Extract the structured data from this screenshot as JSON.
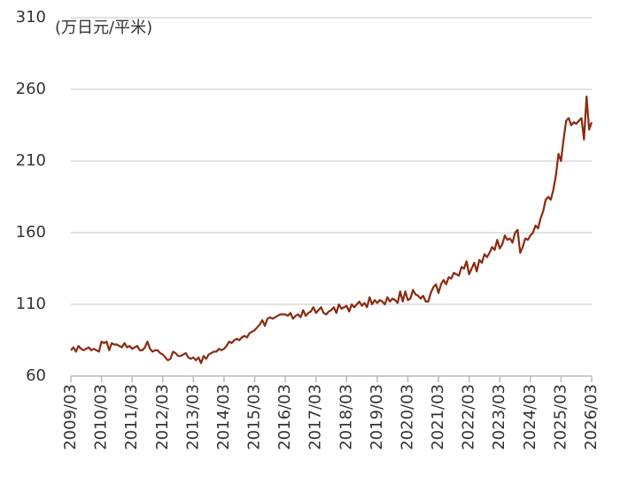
{
  "chart_data": {
    "type": "line",
    "y_label": "(万日元/平米)",
    "categories": [
      "2009/03",
      null,
      null,
      null,
      null,
      null,
      null,
      null,
      null,
      null,
      null,
      null,
      "2010/03",
      null,
      null,
      null,
      null,
      null,
      null,
      null,
      null,
      null,
      null,
      null,
      "2011/03",
      null,
      null,
      null,
      null,
      null,
      null,
      null,
      null,
      null,
      null,
      null,
      "2012/03",
      null,
      null,
      null,
      null,
      null,
      null,
      null,
      null,
      null,
      null,
      null,
      "2013/03",
      null,
      null,
      null,
      null,
      null,
      null,
      null,
      null,
      null,
      null,
      null,
      "2014/03",
      null,
      null,
      null,
      null,
      null,
      null,
      null,
      null,
      null,
      null,
      null,
      "2015/03",
      null,
      null,
      null,
      null,
      null,
      null,
      null,
      null,
      null,
      null,
      null,
      "2016/03",
      null,
      null,
      null,
      null,
      null,
      null,
      null,
      null,
      null,
      null,
      null,
      "2017/03",
      null,
      null,
      null,
      null,
      null,
      null,
      null,
      null,
      null,
      null,
      null,
      "2018/03",
      null,
      null,
      null,
      null,
      null,
      null,
      null,
      null,
      null,
      null,
      null,
      "2019/03",
      null,
      null,
      null,
      null,
      null,
      null,
      null,
      null,
      null,
      null,
      null,
      "2020/03",
      null,
      null,
      null,
      null,
      null,
      null,
      null,
      null,
      null,
      null,
      null,
      "2021/03",
      null,
      null,
      null,
      null,
      null,
      null,
      null,
      null,
      null,
      null,
      null,
      "2022/03",
      null,
      null,
      null,
      null,
      null,
      null,
      null,
      null,
      null,
      null,
      null,
      "2023/03",
      null,
      null,
      null,
      null,
      null,
      null,
      null,
      null,
      null,
      null,
      null,
      "2024/03",
      null,
      null,
      null,
      null,
      null,
      null,
      null,
      null,
      null,
      null,
      null,
      "2025/03",
      null,
      null,
      null,
      null,
      null,
      null,
      null,
      null,
      null,
      null,
      null,
      "2026/03"
    ],
    "values": [
      78,
      80,
      77,
      81,
      79,
      78,
      79,
      80,
      78,
      79,
      78,
      77,
      84,
      83,
      84,
      78,
      83,
      82,
      82,
      81,
      80,
      83,
      80,
      81,
      79,
      80,
      81,
      78,
      78,
      80,
      84,
      79,
      77,
      78,
      78,
      76,
      75,
      73,
      71,
      72,
      77,
      76,
      74,
      74,
      75,
      76,
      73,
      72,
      73,
      71,
      73,
      69,
      74,
      72,
      75,
      76,
      77,
      77,
      79,
      78,
      79,
      81,
      84,
      83,
      85,
      86,
      85,
      87,
      88,
      87,
      90,
      91,
      92,
      94,
      96,
      99,
      95,
      100,
      101,
      100,
      101,
      102,
      103,
      103,
      103,
      102,
      104,
      100,
      102,
      103,
      101,
      106,
      102,
      104,
      105,
      108,
      104,
      106,
      108,
      104,
      103,
      105,
      106,
      108,
      104,
      110,
      107,
      108,
      109,
      105,
      110,
      108,
      110,
      112,
      109,
      111,
      108,
      115,
      110,
      113,
      111,
      113,
      112,
      110,
      115,
      112,
      114,
      113,
      111,
      119,
      112,
      119,
      113,
      114,
      120,
      117,
      116,
      114,
      116,
      112,
      112,
      118,
      122,
      124,
      118,
      124,
      127,
      124,
      129,
      128,
      132,
      131,
      130,
      136,
      135,
      140,
      131,
      135,
      139,
      133,
      141,
      139,
      145,
      143,
      146,
      150,
      148,
      155,
      149,
      152,
      158,
      155,
      156,
      153,
      160,
      162,
      146,
      150,
      156,
      155,
      158,
      160,
      165,
      163,
      170,
      175,
      183,
      185,
      183,
      190,
      200,
      215,
      210,
      225,
      238,
      240,
      235,
      237,
      236,
      238,
      240,
      225,
      255,
      232,
      237
    ],
    "color": "#8b2a0e",
    "ylim": [
      60,
      310
    ],
    "yticks": [
      60,
      110,
      160,
      210,
      260,
      310
    ],
    "grid": true
  }
}
